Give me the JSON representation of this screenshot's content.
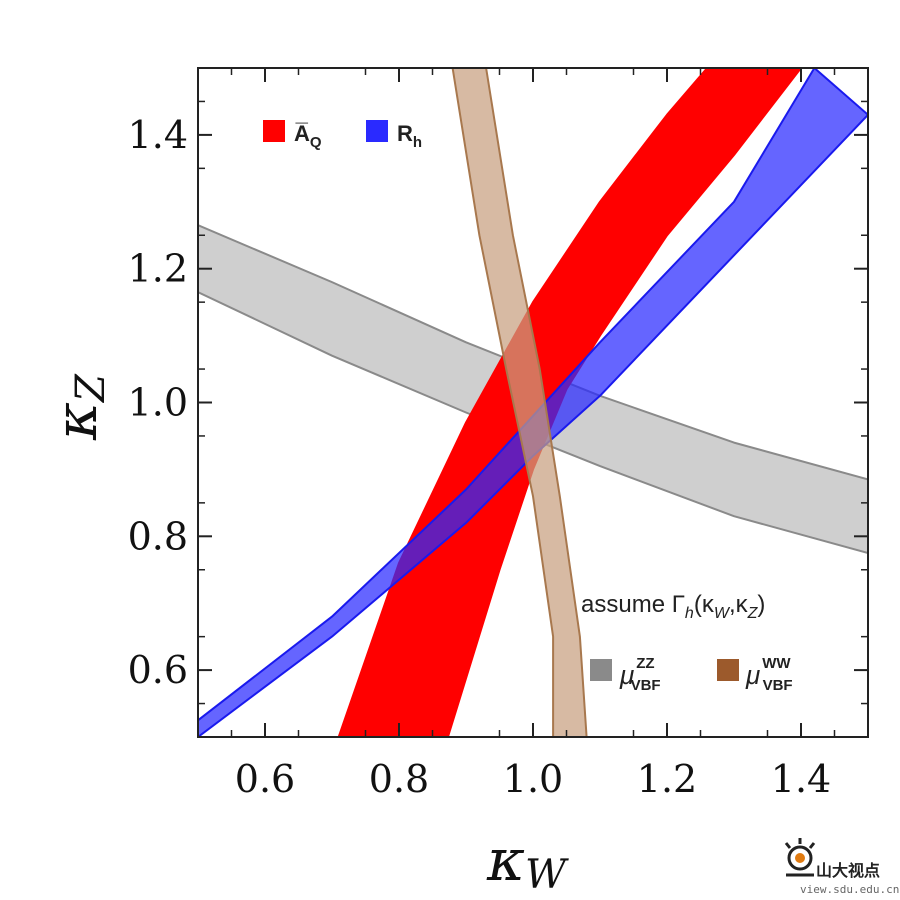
{
  "chart_data": {
    "type": "area",
    "xlabel": "κ",
    "xlabel_sub": "W",
    "ylabel": "κ",
    "ylabel_sub": "Z",
    "xlim": [
      0.5,
      1.5
    ],
    "ylim": [
      0.5,
      1.5
    ],
    "xticks": [
      "0.6",
      "0.8",
      "1.0",
      "1.2",
      "1.4"
    ],
    "xtick_values": [
      0.6,
      0.8,
      1.0,
      1.2,
      1.4
    ],
    "yticks": [
      "0.6",
      "0.8",
      "1.0",
      "1.2",
      "1.4"
    ],
    "ytick_values": [
      0.6,
      0.8,
      1.0,
      1.2,
      1.4
    ],
    "legend_placement": "top-left",
    "grid": false,
    "series": [
      {
        "name": "A̅Q",
        "legend_main": "A̅",
        "legend_sub": "Q",
        "color": "#ff0000",
        "upper": [
          [
            0.873,
            0.5
          ],
          [
            0.95,
            0.75
          ],
          [
            1.0,
            0.9
          ],
          [
            1.05,
            1.02
          ],
          [
            1.1,
            1.1
          ],
          [
            1.2,
            1.25
          ],
          [
            1.3,
            1.37
          ],
          [
            1.4,
            1.5
          ]
        ],
        "lower": [
          [
            0.71,
            0.5
          ],
          [
            0.8,
            0.76
          ],
          [
            0.9,
            0.97
          ],
          [
            1.0,
            1.15
          ],
          [
            1.1,
            1.3
          ],
          [
            1.2,
            1.43
          ],
          [
            1.26,
            1.5
          ]
        ]
      },
      {
        "name": "Rh",
        "legend_main": "R",
        "legend_sub": "h",
        "color": "#2a2aff",
        "upper": [
          [
            0.5,
            0.5
          ],
          [
            0.7,
            0.65
          ],
          [
            0.9,
            0.82
          ],
          [
            1.0,
            0.92
          ],
          [
            1.1,
            1.01
          ],
          [
            1.3,
            1.22
          ],
          [
            1.5,
            1.43
          ]
        ],
        "lower": [
          [
            0.5,
            0.525
          ],
          [
            0.7,
            0.68
          ],
          [
            0.9,
            0.87
          ],
          [
            1.0,
            0.98
          ],
          [
            1.1,
            1.09
          ],
          [
            1.3,
            1.3
          ],
          [
            1.42,
            1.5
          ]
        ]
      },
      {
        "name": "μVBFZZ",
        "legend_main": "μ",
        "legend_sub": "VBF",
        "legend_sup": "ZZ",
        "color": "#8a8a8a",
        "fill": "#cfcfcf",
        "upper": [
          [
            0.5,
            1.165
          ],
          [
            0.7,
            1.07
          ],
          [
            0.9,
            0.985
          ],
          [
            1.0,
            0.945
          ],
          [
            1.1,
            0.905
          ],
          [
            1.3,
            0.83
          ],
          [
            1.5,
            0.775
          ]
        ],
        "lower": [
          [
            0.5,
            1.265
          ],
          [
            0.7,
            1.18
          ],
          [
            0.9,
            1.09
          ],
          [
            1.0,
            1.05
          ],
          [
            1.1,
            1.01
          ],
          [
            1.3,
            0.94
          ],
          [
            1.5,
            0.885
          ]
        ]
      },
      {
        "name": "μVBFWW",
        "legend_main": "μ",
        "legend_sub": "VBF",
        "legend_sup": "WW",
        "color": "#9c5a2c",
        "fill": "#c8a080",
        "left": [
          [
            0.88,
            1.5
          ],
          [
            0.92,
            1.25
          ],
          [
            0.96,
            1.05
          ],
          [
            1.0,
            0.86
          ],
          [
            1.03,
            0.65
          ],
          [
            1.03,
            0.5
          ]
        ],
        "right": [
          [
            0.93,
            1.5
          ],
          [
            0.97,
            1.25
          ],
          [
            1.01,
            1.05
          ],
          [
            1.04,
            0.86
          ],
          [
            1.07,
            0.65
          ],
          [
            1.08,
            0.5
          ]
        ]
      }
    ],
    "annotation": {
      "text": "assume Γ",
      "sub": "h",
      "args": "(κ",
      "args_sub1": "W",
      "comma": ",κ",
      "args_sub2": "Z",
      "close": ")"
    }
  },
  "watermark": {
    "brand": "山大视点",
    "url": "view.sdu.edu.cn"
  }
}
